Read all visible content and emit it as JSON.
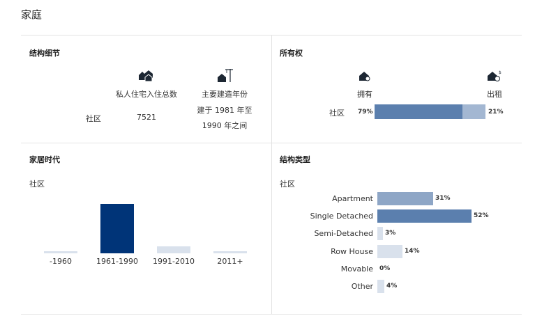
{
  "page": {
    "title": "家庭"
  },
  "structure_details": {
    "title": "结构细节",
    "row_label": "社区",
    "col_private_homes": {
      "icon": "houses-icon",
      "label": "私人住宅入住总数",
      "value": "7521"
    },
    "col_build_year": {
      "icon": "house-crane-icon",
      "label": "主要建造年份",
      "value_line1": "建于 1981 年至",
      "value_line2": "1990 年之间"
    }
  },
  "ownership": {
    "title": "所有权",
    "row_label": "社区",
    "owned": {
      "icon": "house-key-icon",
      "label": "拥有",
      "pct": "79%",
      "value": 79
    },
    "rented": {
      "icon": "house-dollar-icon",
      "label": "出租",
      "pct": "21%",
      "value": 21
    },
    "colors": {
      "owned": "#5b7fae",
      "rented": "#a3b7d2"
    }
  },
  "home_age": {
    "title": "家居时代",
    "subtitle": "社区",
    "chart_data": {
      "type": "bar",
      "categories": [
        "-1960",
        "1961-1990",
        "1991-2010",
        "2011+"
      ],
      "values": [
        2,
        74,
        10,
        2
      ],
      "ylim": [
        0,
        75
      ],
      "colors": [
        "#d9e1ec",
        "#003478",
        "#d9e1ec",
        "#d9e1ec"
      ]
    }
  },
  "structure_type": {
    "title": "结构类型",
    "subtitle": "社区",
    "chart_data": {
      "type": "bar",
      "orientation": "horizontal",
      "categories": [
        "Apartment",
        "Single Detached",
        "Semi-Detached",
        "Row House",
        "Movable",
        "Other"
      ],
      "values": [
        31,
        52,
        3,
        14,
        0,
        4
      ],
      "labels": [
        "31%",
        "52%",
        "3%",
        "14%",
        "0%",
        "4%"
      ],
      "xlim": [
        0,
        52
      ],
      "colors": [
        "#8ea6c6",
        "#5b7fae",
        "#d9e1ec",
        "#d9e1ec",
        "#d9e1ec",
        "#d9e1ec"
      ]
    }
  }
}
